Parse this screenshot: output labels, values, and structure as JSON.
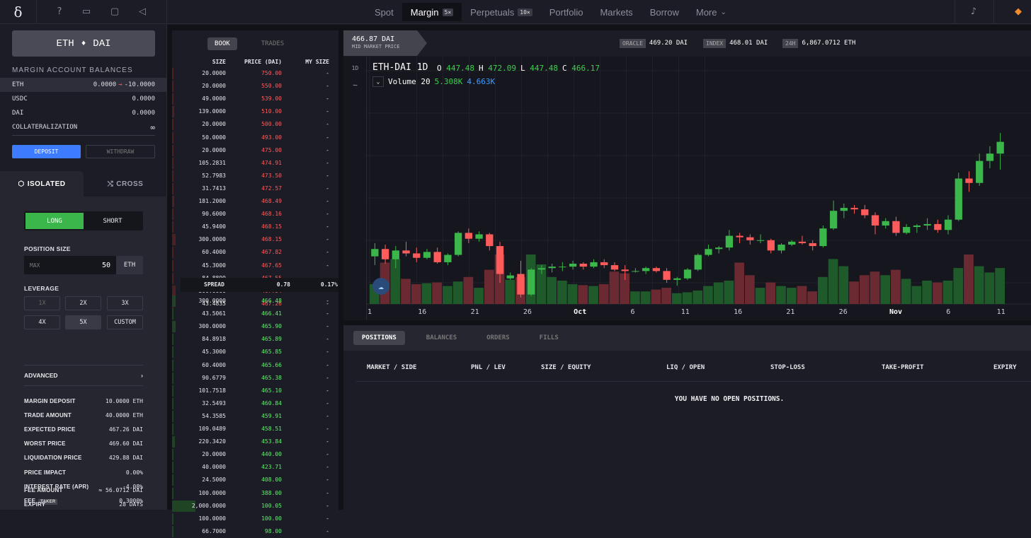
{
  "nav": {
    "logo": "δ",
    "items": [
      {
        "label": "Spot",
        "badge": ""
      },
      {
        "label": "Margin",
        "badge": "5×",
        "active": true
      },
      {
        "label": "Perpetuals",
        "badge": "10×"
      },
      {
        "label": "Portfolio",
        "badge": ""
      },
      {
        "label": "Markets",
        "badge": ""
      },
      {
        "label": "Borrow",
        "badge": ""
      },
      {
        "label": "More",
        "badge": "⌄"
      }
    ]
  },
  "pair": {
    "base": "ETH",
    "quote": "DAI",
    "icon": "♦"
  },
  "balances": {
    "title": "MARGIN ACCOUNT BALANCES",
    "rows": [
      {
        "asset": "ETH",
        "value": "0.0000",
        "arrow": "→",
        "after": "-10.0000"
      },
      {
        "asset": "USDC",
        "value": "0.0000"
      },
      {
        "asset": "DAI",
        "value": "0.0000"
      },
      {
        "asset": "COLLATERALIZATION",
        "value": "∞"
      }
    ],
    "deposit": "DEPOSIT",
    "withdraw": "WITHDRAW"
  },
  "mode_tabs": {
    "isolated": "ISOLATED",
    "cross": "CROSS"
  },
  "order": {
    "long": "LONG",
    "short": "SHORT",
    "position_size_label": "POSITION SIZE",
    "max_placeholder": "MAX",
    "size_value": "50",
    "size_unit": "ETH",
    "leverage_label": "LEVERAGE",
    "leverage": [
      "1X",
      "2X",
      "3X",
      "4X",
      "5X",
      "CUSTOM"
    ],
    "advanced": "ADVANCED",
    "details": [
      {
        "k": "MARGIN DEPOSIT",
        "v": "10.0000 ETH"
      },
      {
        "k": "TRADE AMOUNT",
        "v": "40.0000 ETH"
      },
      {
        "k": "EXPECTED PRICE",
        "v": "467.26 DAI"
      },
      {
        "k": "WORST PRICE",
        "v": "469.60 DAI"
      },
      {
        "k": "LIQUIDATION PRICE",
        "v": "429.88 DAI"
      },
      {
        "k": "PRICE IMPACT",
        "v": "0.00%"
      },
      {
        "k": "INTEREST RATE (APR)",
        "v": "-4.08%"
      },
      {
        "k": "FEE",
        "v": "0.3000%",
        "tag": "TAKER"
      },
      {
        "k": "FEE AMOUNT",
        "v": "≈ 56.0712 DAI"
      },
      {
        "k": "EXPIRY",
        "v": "28 DAYS"
      }
    ]
  },
  "book": {
    "tabs": [
      "BOOK",
      "TRADES"
    ],
    "headers": {
      "size": "SIZE",
      "price": "PRICE (DAI)",
      "my": "MY SIZE"
    },
    "asks": [
      {
        "size": "20.0000",
        "price": "750.00",
        "depth": 0.01
      },
      {
        "size": "20.0000",
        "price": "550.00",
        "depth": 0.01
      },
      {
        "size": "49.0000",
        "price": "539.00",
        "depth": 0.02
      },
      {
        "size": "139.0000",
        "price": "510.00",
        "depth": 0.05
      },
      {
        "size": "20.0000",
        "price": "500.00",
        "depth": 0.01
      },
      {
        "size": "50.0000",
        "price": "493.00",
        "depth": 0.02
      },
      {
        "size": "20.0000",
        "price": "475.00",
        "depth": 0.01
      },
      {
        "size": "105.2831",
        "price": "474.91",
        "depth": 0.04
      },
      {
        "size": "52.7983",
        "price": "473.50",
        "depth": 0.02
      },
      {
        "size": "31.7413",
        "price": "472.57",
        "depth": 0.01
      },
      {
        "size": "181.2000",
        "price": "468.49",
        "depth": 0.05
      },
      {
        "size": "90.6000",
        "price": "468.16",
        "depth": 0.03
      },
      {
        "size": "45.9400",
        "price": "468.15",
        "depth": 0.02
      },
      {
        "size": "300.0000",
        "price": "468.15",
        "depth": 0.08
      },
      {
        "size": "60.4000",
        "price": "467.82",
        "depth": 0.02
      },
      {
        "size": "45.3000",
        "price": "467.65",
        "depth": 0.02
      },
      {
        "size": "84.8899",
        "price": "467.55",
        "depth": 0.03
      },
      {
        "size": "300.0000",
        "price": "467.54",
        "depth": 0.08
      },
      {
        "size": "43.4835",
        "price": "467.26",
        "depth": 0.02
      }
    ],
    "spread": {
      "label": "SPREAD",
      "value": "0.78",
      "pct": "0.17%"
    },
    "bids": [
      {
        "size": "300.0000",
        "price": "466.48",
        "depth": 0.08
      },
      {
        "size": "43.5061",
        "price": "466.41",
        "depth": 0.02
      },
      {
        "size": "300.0000",
        "price": "465.90",
        "depth": 0.08
      },
      {
        "size": "84.8918",
        "price": "465.89",
        "depth": 0.03
      },
      {
        "size": "45.3000",
        "price": "465.85",
        "depth": 0.02
      },
      {
        "size": "60.4000",
        "price": "465.66",
        "depth": 0.02
      },
      {
        "size": "90.6779",
        "price": "465.38",
        "depth": 0.03
      },
      {
        "size": "101.7518",
        "price": "465.10",
        "depth": 0.03
      },
      {
        "size": "32.5493",
        "price": "460.84",
        "depth": 0.01
      },
      {
        "size": "54.3585",
        "price": "459.91",
        "depth": 0.02
      },
      {
        "size": "109.0489",
        "price": "458.51",
        "depth": 0.03
      },
      {
        "size": "220.3420",
        "price": "453.84",
        "depth": 0.06
      },
      {
        "size": "20.0000",
        "price": "440.00",
        "depth": 0.01
      },
      {
        "size": "40.0000",
        "price": "423.71",
        "depth": 0.01
      },
      {
        "size": "24.5000",
        "price": "408.00",
        "depth": 0.01
      },
      {
        "size": "100.0000",
        "price": "388.00",
        "depth": 0.03
      },
      {
        "size": "2,000.0000",
        "price": "100.05",
        "depth": 0.55
      },
      {
        "size": "100.0000",
        "price": "100.00",
        "depth": 0.03
      },
      {
        "size": "66.7000",
        "price": "98.00",
        "depth": 0.02
      }
    ],
    "my_size": "-"
  },
  "market": {
    "mid_price": "466.87 DAI",
    "mid_label": "MID MARKET PRICE",
    "oracle_tag": "ORACLE",
    "oracle": "469.20 DAI",
    "index_tag": "INDEX",
    "index": "468.01 DAI",
    "h24_tag": "24H",
    "h24": "6,867.0712 ETH"
  },
  "chart": {
    "interval_btn": "1D",
    "indicator_icon": "wave-icon",
    "symbol": "ETH-DAI",
    "interval": "1D",
    "ohlc": {
      "o_label": "O",
      "o": "447.48",
      "h_label": "H",
      "h": "472.09",
      "l_label": "L",
      "l": "447.48",
      "c_label": "C",
      "c": "466.17"
    },
    "volume_label": "Volume 20",
    "volume": "5.308K",
    "volume_ma": "4.663K",
    "x_ticks": [
      "1",
      "16",
      "21",
      "26",
      "Oct",
      "6",
      "11",
      "16",
      "21",
      "26",
      "Nov",
      "6",
      "11"
    ]
  },
  "chart_data": {
    "type": "candlestick",
    "symbol": "ETH-DAI",
    "interval": "1D",
    "up_color": "#3bb64a",
    "down_color": "#ff5b5b",
    "ylim": [
      370,
      500
    ],
    "candles": [
      {
        "o": 388,
        "h": 397,
        "l": 382,
        "c": 393,
        "v": 22
      },
      {
        "o": 393,
        "h": 396,
        "l": 383,
        "c": 386,
        "v": 46
      },
      {
        "o": 386,
        "h": 395,
        "l": 380,
        "c": 392,
        "v": 50
      },
      {
        "o": 392,
        "h": 398,
        "l": 388,
        "c": 390,
        "v": 28
      },
      {
        "o": 390,
        "h": 394,
        "l": 384,
        "c": 387,
        "v": 22
      },
      {
        "o": 387,
        "h": 393,
        "l": 386,
        "c": 391,
        "v": 23
      },
      {
        "o": 391,
        "h": 394,
        "l": 383,
        "c": 384,
        "v": 24
      },
      {
        "o": 384,
        "h": 390,
        "l": 382,
        "c": 389,
        "v": 20
      },
      {
        "o": 389,
        "h": 405,
        "l": 388,
        "c": 404,
        "v": 25
      },
      {
        "o": 404,
        "h": 407,
        "l": 397,
        "c": 400,
        "v": 30
      },
      {
        "o": 400,
        "h": 405,
        "l": 398,
        "c": 403,
        "v": 18
      },
      {
        "o": 403,
        "h": 404,
        "l": 392,
        "c": 395,
        "v": 38
      },
      {
        "o": 395,
        "h": 398,
        "l": 370,
        "c": 376,
        "v": 55
      },
      {
        "o": 373,
        "h": 377,
        "l": 372,
        "c": 375,
        "v": 27
      },
      {
        "o": 376,
        "h": 385,
        "l": 360,
        "c": 362,
        "v": 30
      },
      {
        "o": 362,
        "h": 380,
        "l": 361,
        "c": 379,
        "v": 55
      },
      {
        "o": 379,
        "h": 382,
        "l": 376,
        "c": 380,
        "v": 44
      },
      {
        "o": 380,
        "h": 383,
        "l": 377,
        "c": 381,
        "v": 30
      },
      {
        "o": 381,
        "h": 384,
        "l": 378,
        "c": 381,
        "v": 26
      },
      {
        "o": 381,
        "h": 385,
        "l": 379,
        "c": 383,
        "v": 22
      },
      {
        "o": 383,
        "h": 384,
        "l": 379,
        "c": 381,
        "v": 21
      },
      {
        "o": 381,
        "h": 386,
        "l": 380,
        "c": 384,
        "v": 20
      },
      {
        "o": 384,
        "h": 386,
        "l": 380,
        "c": 382,
        "v": 22
      },
      {
        "o": 382,
        "h": 384,
        "l": 378,
        "c": 379,
        "v": 36
      },
      {
        "o": 379,
        "h": 382,
        "l": 372,
        "c": 378,
        "v": 34
      },
      {
        "o": 378,
        "h": 380,
        "l": 377,
        "c": 378,
        "v": 14
      },
      {
        "o": 378,
        "h": 381,
        "l": 376,
        "c": 380,
        "v": 14
      },
      {
        "o": 380,
        "h": 381,
        "l": 377,
        "c": 378,
        "v": 16
      },
      {
        "o": 378,
        "h": 380,
        "l": 370,
        "c": 372,
        "v": 18
      },
      {
        "o": 372,
        "h": 374,
        "l": 368,
        "c": 373,
        "v": 12
      },
      {
        "o": 373,
        "h": 380,
        "l": 372,
        "c": 379,
        "v": 13
      },
      {
        "o": 379,
        "h": 390,
        "l": 378,
        "c": 389,
        "v": 15
      },
      {
        "o": 389,
        "h": 396,
        "l": 388,
        "c": 393,
        "v": 20
      },
      {
        "o": 393,
        "h": 395,
        "l": 390,
        "c": 394,
        "v": 24
      },
      {
        "o": 394,
        "h": 406,
        "l": 392,
        "c": 402,
        "v": 26
      },
      {
        "o": 402,
        "h": 404,
        "l": 397,
        "c": 401,
        "v": 46
      },
      {
        "o": 401,
        "h": 403,
        "l": 396,
        "c": 399,
        "v": 32
      },
      {
        "o": 399,
        "h": 403,
        "l": 397,
        "c": 399,
        "v": 18
      },
      {
        "o": 399,
        "h": 400,
        "l": 390,
        "c": 392,
        "v": 24
      },
      {
        "o": 392,
        "h": 397,
        "l": 390,
        "c": 396,
        "v": 20
      },
      {
        "o": 396,
        "h": 399,
        "l": 395,
        "c": 398,
        "v": 18
      },
      {
        "o": 398,
        "h": 402,
        "l": 396,
        "c": 397,
        "v": 20
      },
      {
        "o": 397,
        "h": 399,
        "l": 392,
        "c": 395,
        "v": 14
      },
      {
        "o": 395,
        "h": 409,
        "l": 394,
        "c": 407,
        "v": 30
      },
      {
        "o": 407,
        "h": 426,
        "l": 406,
        "c": 419,
        "v": 50
      },
      {
        "o": 419,
        "h": 424,
        "l": 414,
        "c": 421,
        "v": 42
      },
      {
        "o": 421,
        "h": 423,
        "l": 417,
        "c": 420,
        "v": 25
      },
      {
        "o": 420,
        "h": 423,
        "l": 414,
        "c": 416,
        "v": 32
      },
      {
        "o": 416,
        "h": 418,
        "l": 403,
        "c": 409,
        "v": 36
      },
      {
        "o": 409,
        "h": 414,
        "l": 407,
        "c": 412,
        "v": 32
      },
      {
        "o": 412,
        "h": 415,
        "l": 402,
        "c": 404,
        "v": 38
      },
      {
        "o": 404,
        "h": 410,
        "l": 403,
        "c": 408,
        "v": 28
      },
      {
        "o": 408,
        "h": 410,
        "l": 404,
        "c": 409,
        "v": 20
      },
      {
        "o": 409,
        "h": 414,
        "l": 406,
        "c": 410,
        "v": 26
      },
      {
        "o": 410,
        "h": 413,
        "l": 404,
        "c": 406,
        "v": 24
      },
      {
        "o": 406,
        "h": 416,
        "l": 403,
        "c": 413,
        "v": 26
      },
      {
        "o": 413,
        "h": 445,
        "l": 412,
        "c": 441,
        "v": 40
      },
      {
        "o": 441,
        "h": 446,
        "l": 432,
        "c": 438,
        "v": 55
      },
      {
        "o": 438,
        "h": 458,
        "l": 436,
        "c": 453,
        "v": 42
      },
      {
        "o": 453,
        "h": 463,
        "l": 448,
        "c": 458,
        "v": 35
      },
      {
        "o": 458,
        "h": 472,
        "l": 447,
        "c": 466,
        "v": 40
      }
    ]
  },
  "positions": {
    "tabs": [
      "POSITIONS",
      "BALANCES",
      "ORDERS",
      "FILLS"
    ],
    "headers": [
      "MARKET / SIDE",
      "PNL / LEV",
      "SIZE / EQUITY",
      "LIQ / OPEN",
      "STOP-LOSS",
      "TAKE-PROFIT",
      "EXPIRY"
    ],
    "empty": "YOU HAVE NO OPEN POSITIONS."
  }
}
